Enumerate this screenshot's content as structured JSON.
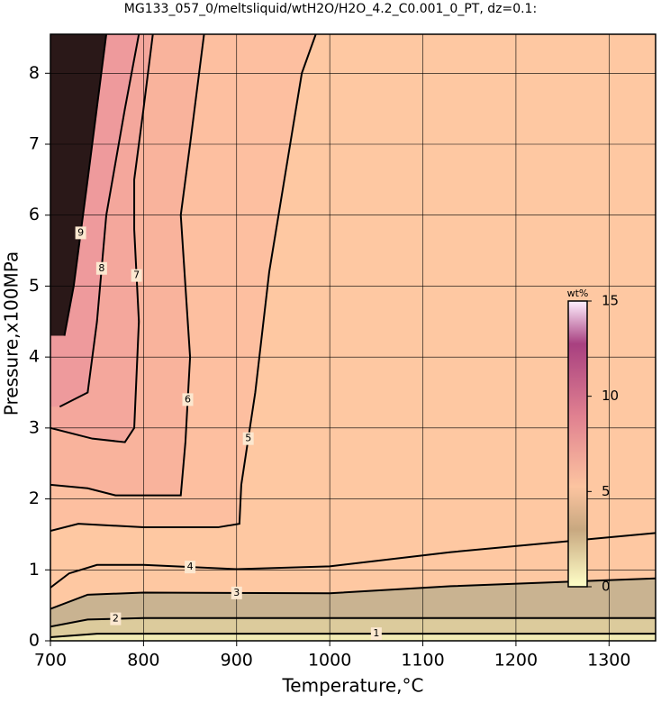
{
  "chart_data": {
    "type": "contour",
    "title": "MG133_057_0/meltsliquid/wtH2O/H2O_4.2_C0.001_0_PT, dz=0.1:",
    "x_label": "Temperature,°C",
    "y_label": "Pressure,x100MPa",
    "xlim": [
      700,
      1350
    ],
    "xticks": [
      700,
      800,
      900,
      1000,
      1100,
      1200,
      1300
    ],
    "ylim": [
      0,
      8.55
    ],
    "yticks": [
      0,
      1,
      2,
      3,
      4,
      5,
      6,
      7,
      8
    ],
    "grid": true,
    "colorbar": {
      "label": "wt%",
      "lim": [
        0,
        15
      ],
      "ticks": [
        0,
        5,
        10,
        15
      ]
    },
    "contours": [
      {
        "level": 1,
        "x": [
          700,
          750,
          1350
        ],
        "y": [
          0.05,
          0.1,
          0.1
        ]
      },
      {
        "level": 2,
        "x": [
          700,
          740,
          800,
          1350
        ],
        "y": [
          0.2,
          0.3,
          0.32,
          0.32
        ]
      },
      {
        "level": 3,
        "x": [
          700,
          740,
          800,
          1000,
          1130,
          1350
        ],
        "y": [
          0.45,
          0.65,
          0.68,
          0.67,
          0.77,
          0.88
        ]
      },
      {
        "level": 4,
        "x": [
          700,
          720,
          750,
          800,
          900,
          1000,
          1130,
          1350
        ],
        "y": [
          0.75,
          0.95,
          1.07,
          1.07,
          1.01,
          1.05,
          1.25,
          1.52
        ]
      },
      {
        "level": 5,
        "x": [
          700,
          730,
          800,
          880,
          903,
          905,
          920,
          935,
          950,
          960,
          970,
          985
        ],
        "y": [
          1.55,
          1.65,
          1.6,
          1.6,
          1.65,
          2.2,
          3.5,
          5.2,
          6.4,
          7.2,
          8.0,
          8.55
        ]
      },
      {
        "level": 6,
        "x": [
          700,
          740,
          770,
          840,
          845,
          850,
          845,
          840,
          850,
          865
        ],
        "y": [
          2.2,
          2.15,
          2.05,
          2.05,
          2.8,
          4.0,
          5.0,
          6.0,
          7.0,
          8.55
        ]
      },
      {
        "level": 7,
        "x": [
          700,
          745,
          780,
          790,
          795,
          790,
          790,
          800,
          810
        ],
        "y": [
          3.0,
          2.85,
          2.8,
          3.0,
          4.5,
          5.8,
          6.5,
          7.5,
          8.55
        ]
      },
      {
        "level": 8,
        "x": [
          710,
          740,
          750,
          760,
          780,
          795
        ],
        "y": [
          3.3,
          3.5,
          4.5,
          6.0,
          7.5,
          8.55
        ]
      },
      {
        "level": 9,
        "x": [
          715,
          725,
          740,
          760
        ],
        "y": [
          4.3,
          5.0,
          6.5,
          8.55
        ]
      }
    ]
  }
}
